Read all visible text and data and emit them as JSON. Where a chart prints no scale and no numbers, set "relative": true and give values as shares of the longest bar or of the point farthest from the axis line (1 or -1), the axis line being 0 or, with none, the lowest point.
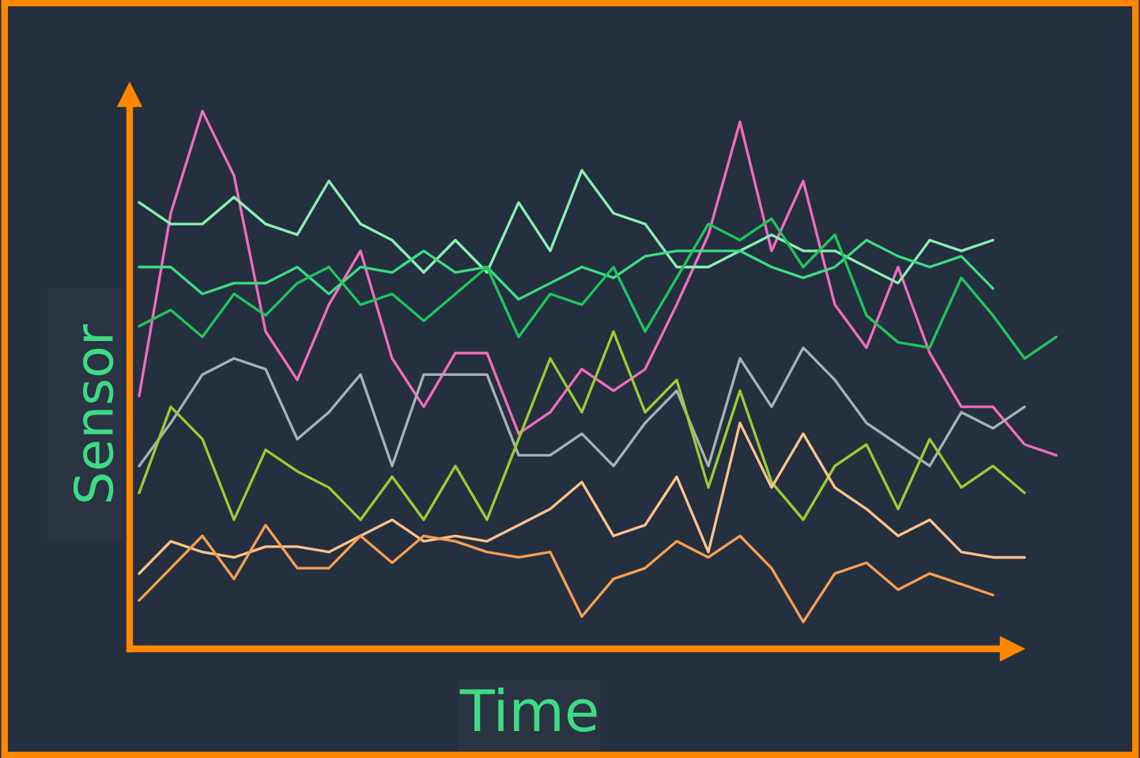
{
  "chart_data": {
    "type": "line",
    "xlabel": "Time",
    "ylabel": "Sensor",
    "relative": true,
    "legend": false,
    "marker": "none",
    "line_style": "solid",
    "categories": [
      null,
      null,
      null,
      null,
      null,
      null,
      null,
      null,
      null,
      null,
      null,
      null,
      null,
      null,
      null,
      null,
      null,
      null,
      null,
      null,
      null,
      null,
      null,
      null,
      null,
      null,
      null,
      null,
      null,
      null
    ],
    "series": [
      {
        "color": "#f06dbd",
        "values": [
          0.47,
          0.81,
          1.0,
          0.88,
          0.59,
          0.5,
          0.64,
          0.74,
          0.54,
          0.45,
          0.55,
          0.55,
          0.4,
          0.44,
          0.52,
          0.48,
          0.52,
          0.64,
          0.77,
          0.98,
          0.74,
          0.87,
          0.64,
          0.56,
          0.71,
          0.55,
          0.45,
          0.45,
          0.38,
          0.36
        ]
      },
      {
        "color": "#8af0b0",
        "values": [
          0.83,
          0.79,
          0.79,
          0.84,
          0.79,
          0.77,
          0.87,
          0.79,
          0.76,
          0.7,
          0.76,
          0.7,
          0.83,
          0.74,
          0.89,
          0.81,
          0.79,
          0.71,
          0.71,
          0.74,
          0.77,
          0.74,
          0.74,
          0.71,
          0.68,
          0.76,
          0.74,
          0.76,
          null,
          null
        ]
      },
      {
        "color": "#3ddc84",
        "values": [
          0.71,
          0.71,
          0.66,
          0.68,
          0.68,
          0.71,
          0.66,
          0.71,
          0.7,
          0.74,
          0.7,
          0.71,
          0.65,
          0.68,
          0.71,
          0.69,
          0.73,
          0.74,
          0.74,
          0.74,
          0.71,
          0.69,
          0.71,
          0.76,
          0.73,
          0.71,
          0.73,
          0.67,
          null,
          null
        ]
      },
      {
        "color": "#1fc75a",
        "values": [
          0.6,
          0.63,
          0.58,
          0.66,
          0.62,
          0.68,
          0.71,
          0.64,
          0.66,
          0.61,
          0.66,
          0.71,
          0.58,
          0.66,
          0.64,
          0.71,
          0.59,
          0.69,
          0.79,
          0.76,
          0.8,
          0.71,
          0.77,
          0.62,
          0.57,
          0.56,
          0.69,
          0.62,
          0.54,
          0.58
        ]
      },
      {
        "color": "#a8b0b8",
        "values": [
          0.34,
          0.42,
          0.51,
          0.54,
          0.52,
          0.39,
          0.44,
          0.51,
          0.34,
          0.51,
          0.51,
          0.51,
          0.36,
          0.36,
          0.4,
          0.34,
          0.42,
          0.48,
          0.34,
          0.54,
          0.45,
          0.56,
          0.5,
          0.42,
          0.38,
          0.34,
          0.44,
          0.41,
          0.45,
          null
        ]
      },
      {
        "color": "#9acd32",
        "values": [
          0.29,
          0.45,
          0.39,
          0.24,
          0.37,
          0.33,
          0.3,
          0.24,
          0.32,
          0.24,
          0.34,
          0.24,
          0.39,
          0.54,
          0.44,
          0.59,
          0.44,
          0.5,
          0.3,
          0.48,
          0.31,
          0.24,
          0.34,
          0.38,
          0.26,
          0.39,
          0.3,
          0.34,
          0.29,
          null
        ]
      },
      {
        "color": "#ffc48a",
        "values": [
          0.14,
          0.2,
          0.18,
          0.17,
          0.19,
          0.19,
          0.18,
          0.21,
          0.24,
          0.2,
          0.21,
          0.2,
          0.23,
          0.26,
          0.31,
          0.21,
          0.23,
          0.32,
          0.18,
          0.42,
          0.3,
          0.4,
          0.3,
          0.26,
          0.21,
          0.24,
          0.18,
          0.17,
          0.17,
          null
        ]
      },
      {
        "color": "#f5a050",
        "values": [
          0.09,
          0.15,
          0.21,
          0.13,
          0.23,
          0.15,
          0.15,
          0.21,
          0.16,
          0.21,
          0.2,
          0.18,
          0.17,
          0.18,
          0.06,
          0.13,
          0.15,
          0.2,
          0.17,
          0.21,
          0.15,
          0.05,
          0.14,
          0.16,
          0.11,
          0.14,
          0.12,
          0.1,
          null,
          null
        ]
      }
    ]
  }
}
